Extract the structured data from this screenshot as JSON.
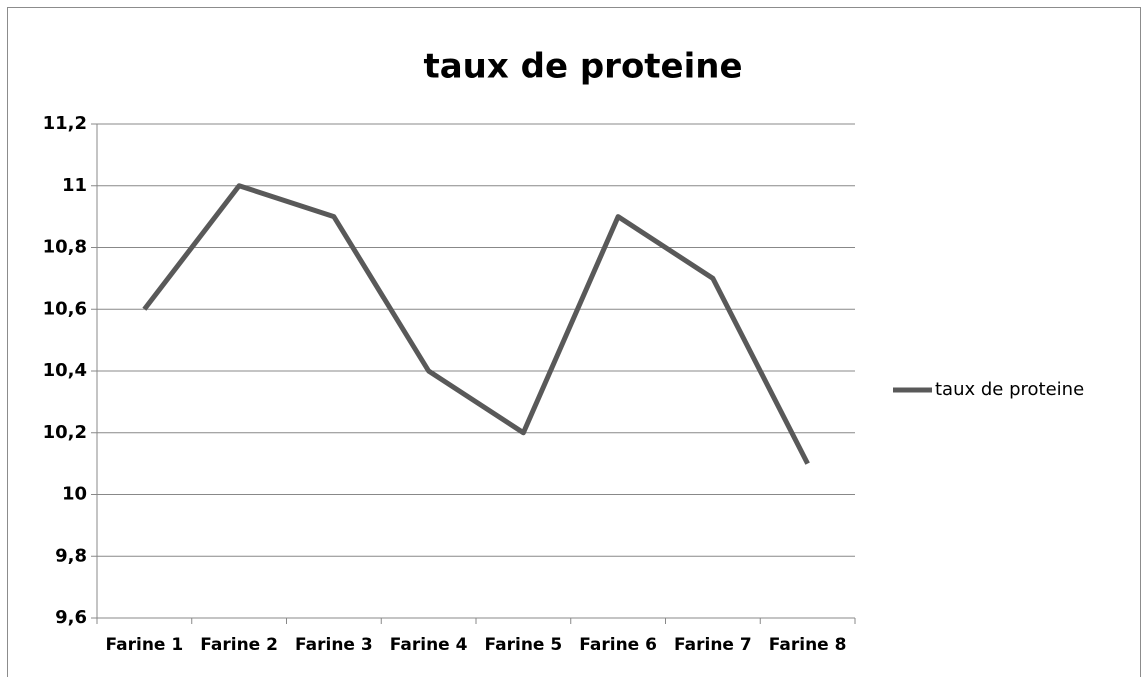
{
  "chart_data": {
    "type": "line",
    "title": "taux de proteine",
    "categories": [
      "Farine 1",
      "Farine 2",
      "Farine 3",
      "Farine 4",
      "Farine 5",
      "Farine 6",
      "Farine 7",
      "Farine 8"
    ],
    "series": [
      {
        "name": "taux de proteine",
        "color": "#595959",
        "values": [
          10.6,
          11,
          10.9,
          10.4,
          10.2,
          10.9,
          10.7,
          10.1
        ]
      }
    ],
    "ylim": [
      9.6,
      11.2
    ],
    "yticks": [
      {
        "value": 9.6,
        "label": "9,6"
      },
      {
        "value": 9.8,
        "label": "9,8"
      },
      10,
      {
        "value": 10.2,
        "label": "10,2"
      },
      {
        "value": 10.4,
        "label": "10,4"
      },
      {
        "value": 10.6,
        "label": "10,6"
      },
      {
        "value": 10.8,
        "label": "10,8"
      },
      11,
      {
        "value": 11.2,
        "label": "11,2"
      }
    ],
    "grid": true,
    "legend": "right"
  }
}
